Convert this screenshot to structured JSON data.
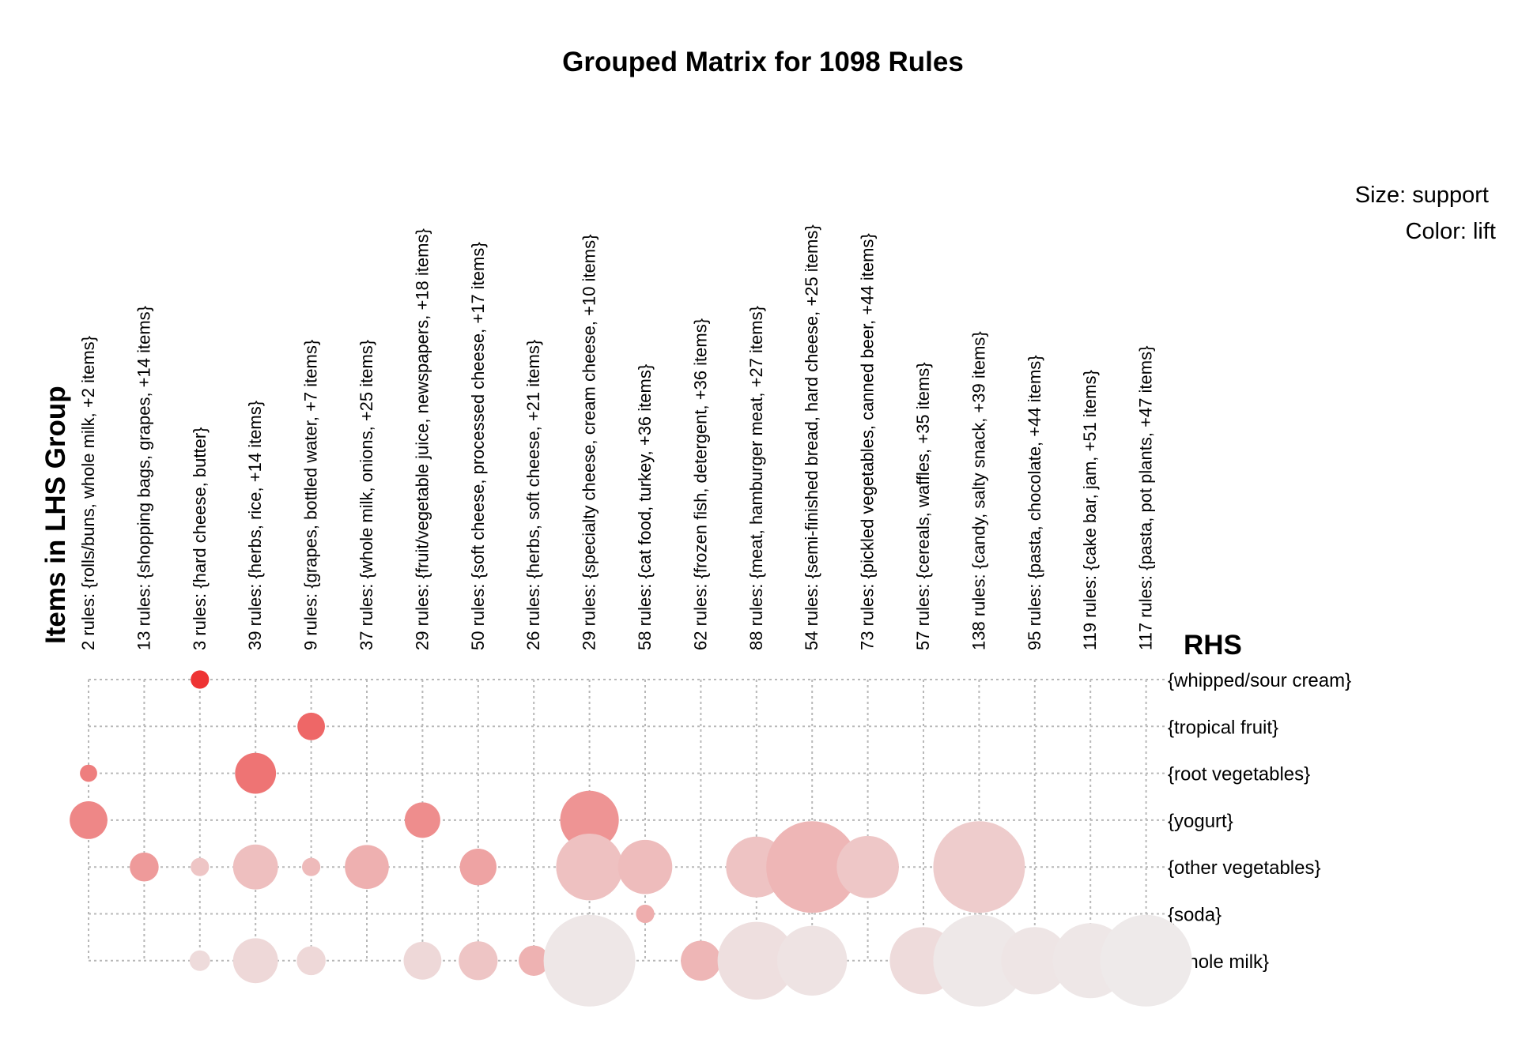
{
  "chart_data": {
    "type": "scatter",
    "title": "Grouped Matrix for 1098 Rules",
    "xlabel": "Items in LHS Group",
    "ylabel": "RHS",
    "legend": {
      "size": "Size: support",
      "color": "Color: lift"
    },
    "lhs_groups": [
      "2 rules: {rolls/buns, whole milk, +2 items}",
      "13 rules: {shopping bags, grapes, +14 items}",
      "3 rules: {hard cheese, butter}",
      "39 rules: {herbs, rice, +14 items}",
      "9 rules: {grapes, bottled water, +7 items}",
      "37 rules: {whole milk, onions, +25 items}",
      "29 rules: {fruit/vegetable juice, newspapers, +18 items}",
      "50 rules: {soft cheese, processed cheese, +17 items}",
      "26 rules: {herbs, soft cheese, +21 items}",
      "29 rules: {specialty cheese, cream cheese, +10 items}",
      "58 rules: {cat food, turkey, +36 items}",
      "62 rules: {frozen fish, detergent, +36 items}",
      "88 rules: {meat, hamburger meat, +27 items}",
      "54 rules: {semi-finished bread, hard cheese, +25 items}",
      "73 rules: {pickled vegetables, canned beer, +44 items}",
      "57 rules: {cereals, waffles, +35 items}",
      "138 rules: {candy, salty snack, +39 items}",
      "95 rules: {pasta, chocolate, +44 items}",
      "119 rules: {cake bar, jam, +51 items}",
      "117 rules: {pasta, pot plants, +47 items}"
    ],
    "rhs_items": [
      "{whipped/sour cream}",
      "{tropical fruit}",
      "{root vegetables}",
      "{yogurt}",
      "{other vegetables}",
      "{soda}",
      "{whole milk}"
    ],
    "points": [
      {
        "lhs": 2,
        "rhs": 0,
        "support": 0.04,
        "lift": 1.0
      },
      {
        "lhs": 4,
        "rhs": 1,
        "support": 0.09,
        "lift": 0.72
      },
      {
        "lhs": 0,
        "rhs": 2,
        "support": 0.035,
        "lift": 0.6
      },
      {
        "lhs": 3,
        "rhs": 2,
        "support": 0.2,
        "lift": 0.65
      },
      {
        "lhs": 0,
        "rhs": 3,
        "support": 0.17,
        "lift": 0.55
      },
      {
        "lhs": 6,
        "rhs": 3,
        "support": 0.15,
        "lift": 0.52
      },
      {
        "lhs": 9,
        "rhs": 3,
        "support": 0.41,
        "lift": 0.48
      },
      {
        "lhs": 1,
        "rhs": 4,
        "support": 0.1,
        "lift": 0.45
      },
      {
        "lhs": 2,
        "rhs": 4,
        "support": 0.04,
        "lift": 0.22
      },
      {
        "lhs": 3,
        "rhs": 4,
        "support": 0.24,
        "lift": 0.25
      },
      {
        "lhs": 4,
        "rhs": 4,
        "support": 0.04,
        "lift": 0.28
      },
      {
        "lhs": 5,
        "rhs": 4,
        "support": 0.23,
        "lift": 0.33
      },
      {
        "lhs": 7,
        "rhs": 4,
        "support": 0.16,
        "lift": 0.4
      },
      {
        "lhs": 9,
        "rhs": 4,
        "support": 0.53,
        "lift": 0.24
      },
      {
        "lhs": 10,
        "rhs": 4,
        "support": 0.35,
        "lift": 0.27
      },
      {
        "lhs": 12,
        "rhs": 4,
        "support": 0.44,
        "lift": 0.23
      },
      {
        "lhs": 13,
        "rhs": 4,
        "support": 1.0,
        "lift": 0.3
      },
      {
        "lhs": 14,
        "rhs": 4,
        "support": 0.46,
        "lift": 0.21
      },
      {
        "lhs": 16,
        "rhs": 4,
        "support": 1.0,
        "lift": 0.18
      },
      {
        "lhs": 10,
        "rhs": 5,
        "support": 0.04,
        "lift": 0.35
      },
      {
        "lhs": 2,
        "rhs": 6,
        "support": 0.05,
        "lift": 0.1
      },
      {
        "lhs": 3,
        "rhs": 6,
        "support": 0.24,
        "lift": 0.12
      },
      {
        "lhs": 4,
        "rhs": 6,
        "support": 0.1,
        "lift": 0.12
      },
      {
        "lhs": 6,
        "rhs": 6,
        "support": 0.17,
        "lift": 0.12
      },
      {
        "lhs": 7,
        "rhs": 6,
        "support": 0.18,
        "lift": 0.22
      },
      {
        "lhs": 8,
        "rhs": 6,
        "support": 0.11,
        "lift": 0.32
      },
      {
        "lhs": 9,
        "rhs": 6,
        "support": 1.0,
        "lift": 0.04
      },
      {
        "lhs": 11,
        "rhs": 6,
        "support": 0.19,
        "lift": 0.3
      },
      {
        "lhs": 12,
        "rhs": 6,
        "support": 0.72,
        "lift": 0.08
      },
      {
        "lhs": 13,
        "rhs": 6,
        "support": 0.58,
        "lift": 0.06
      },
      {
        "lhs": 15,
        "rhs": 6,
        "support": 0.54,
        "lift": 0.1
      },
      {
        "lhs": 16,
        "rhs": 6,
        "support": 1.0,
        "lift": 0.03
      },
      {
        "lhs": 17,
        "rhs": 6,
        "support": 0.54,
        "lift": 0.05
      },
      {
        "lhs": 18,
        "rhs": 6,
        "support": 0.67,
        "lift": 0.04
      },
      {
        "lhs": 19,
        "rhs": 6,
        "support": 1.0,
        "lift": 0.02
      }
    ],
    "color_scale": {
      "low": "#eeeeee",
      "high": "#ee3333"
    },
    "grid": true
  }
}
